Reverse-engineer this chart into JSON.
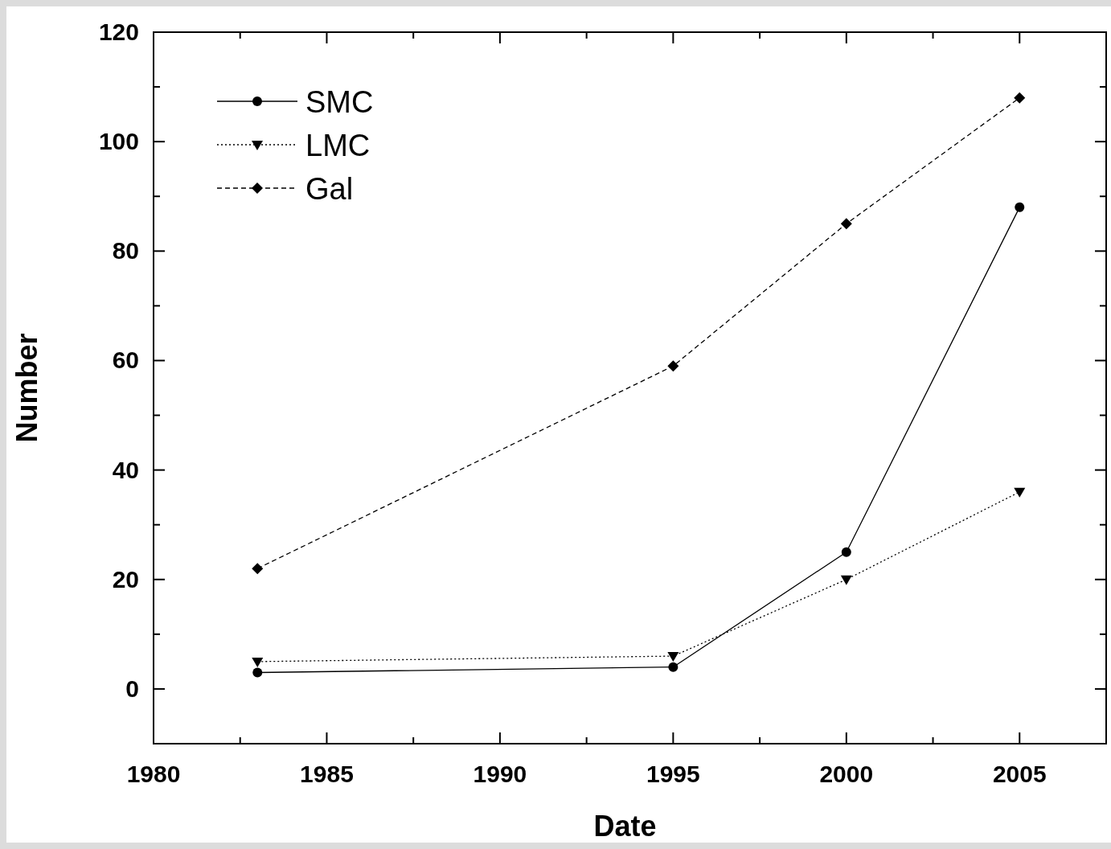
{
  "chart_data": {
    "type": "line",
    "xlabel": "Date",
    "ylabel": "Number",
    "x": [
      1983,
      1995,
      2000,
      2005
    ],
    "series": [
      {
        "name": "SMC",
        "color": "#000000",
        "values": [
          3,
          4,
          25,
          88
        ],
        "marker": "circle",
        "line_style": "solid"
      },
      {
        "name": "LMC",
        "color": "#000000",
        "values": [
          5,
          6,
          20,
          36
        ],
        "marker": "triangle",
        "line_style": "dotted"
      },
      {
        "name": "Gal",
        "color": "#000000",
        "values": [
          22,
          59,
          85,
          108
        ],
        "marker": "diamond",
        "line_style": "dashed"
      }
    ],
    "xlim": [
      1980,
      2007.5
    ],
    "ylim": [
      -10,
      120
    ],
    "xticks": [
      1980,
      {
        "value": 1982.5,
        "label": null
      },
      1985,
      {
        "value": 1987.5,
        "label": null
      },
      1990,
      {
        "value": 1992.5,
        "label": null
      },
      1995,
      {
        "value": 1997.5,
        "label": null
      },
      2000,
      {
        "value": 2002.5,
        "label": null
      },
      2005,
      {
        "value": 2007.5,
        "label": null
      }
    ],
    "yticks": [
      {
        "value": -10,
        "label": null
      },
      0,
      {
        "value": 10,
        "label": null
      },
      20,
      {
        "value": 30,
        "label": null
      },
      40,
      {
        "value": 50,
        "label": null
      },
      60,
      {
        "value": 70,
        "label": null
      },
      80,
      {
        "value": 90,
        "label": null
      },
      100,
      {
        "value": 110,
        "label": null
      },
      120
    ],
    "grid": false,
    "legend": "top left"
  }
}
